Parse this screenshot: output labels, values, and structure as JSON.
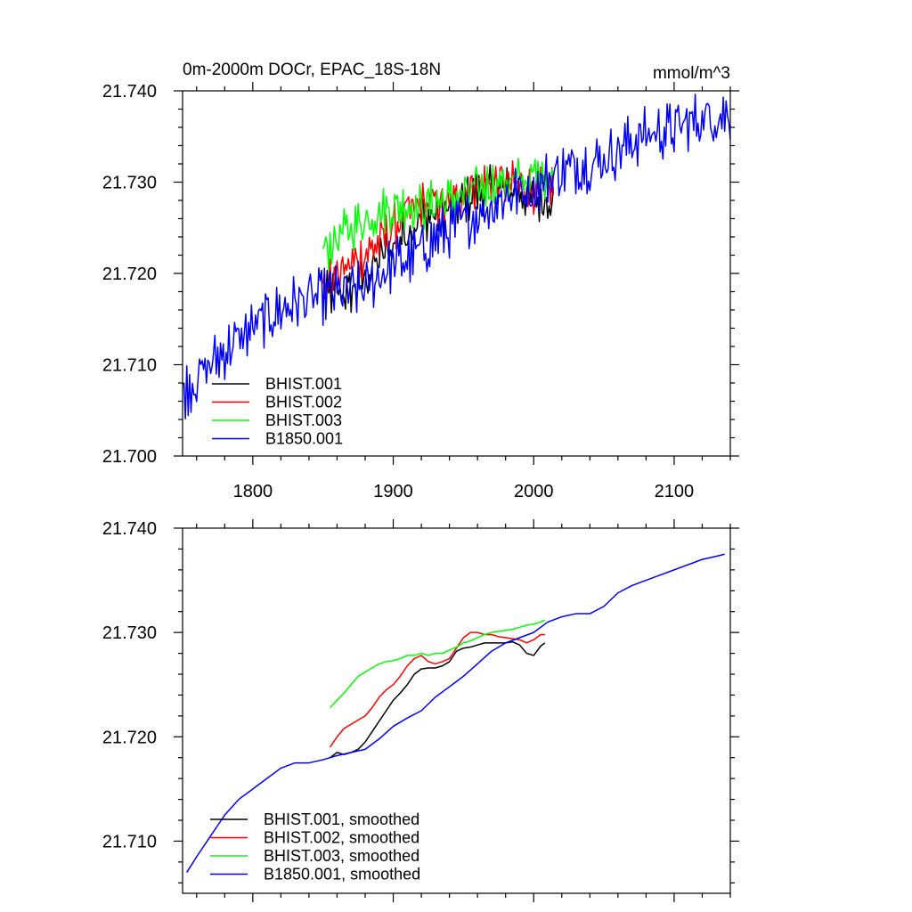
{
  "chart_data": [
    {
      "type": "line",
      "title": "0m-2000m DOCr, EPAC_18S-18N",
      "units": "mmol/m^3",
      "xlim": [
        1750,
        2140
      ],
      "ylim": [
        21.7,
        21.74
      ],
      "xticks": [
        1800,
        1900,
        2000,
        2100
      ],
      "xtick_labels": [
        "1800",
        "1900",
        "2000",
        "2100"
      ],
      "yticks": [
        21.7,
        21.71,
        21.72,
        21.73,
        21.74
      ],
      "ytick_labels": [
        "21.700",
        "21.710",
        "21.720",
        "21.730",
        "21.740"
      ],
      "grid": false,
      "legend_position": "bottom-left",
      "series": [
        {
          "name": "BHIST.001",
          "color": "#000000",
          "noise": 0.0022,
          "x": [
            1850,
            1860,
            1870,
            1880,
            1890,
            1900,
            1910,
            1920,
            1930,
            1940,
            1950,
            1960,
            1970,
            1980,
            1990,
            2000,
            2005,
            2014
          ],
          "y": [
            21.7175,
            21.7178,
            21.718,
            21.7195,
            21.7215,
            21.723,
            21.7248,
            21.726,
            21.7265,
            21.7268,
            21.7278,
            21.7288,
            21.7292,
            21.7292,
            21.729,
            21.728,
            21.7278,
            21.7288
          ]
        },
        {
          "name": "BHIST.002",
          "color": "#ff0000",
          "noise": 0.0022,
          "x": [
            1850,
            1860,
            1870,
            1880,
            1890,
            1900,
            1910,
            1920,
            1930,
            1940,
            1950,
            1960,
            1970,
            1980,
            1990,
            2000,
            2005,
            2014
          ],
          "y": [
            21.7185,
            21.7198,
            21.721,
            21.7222,
            21.7233,
            21.725,
            21.7265,
            21.7275,
            21.7278,
            21.727,
            21.729,
            21.7298,
            21.73,
            21.7298,
            21.7296,
            21.7292,
            21.729,
            21.7298
          ]
        },
        {
          "name": "BHIST.003",
          "color": "#00ff00",
          "noise": 0.0022,
          "x": [
            1850,
            1860,
            1870,
            1880,
            1890,
            1900,
            1910,
            1920,
            1930,
            1940,
            1950,
            1960,
            1970,
            1980,
            1990,
            2000,
            2005,
            2014
          ],
          "y": [
            21.7225,
            21.7238,
            21.725,
            21.726,
            21.7268,
            21.7272,
            21.7275,
            21.7272,
            21.7278,
            21.728,
            21.7285,
            21.7292,
            21.7298,
            21.73,
            21.7302,
            21.7305,
            21.7308,
            21.731
          ]
        },
        {
          "name": "B1850.001",
          "color": "#0000ff",
          "noise": 0.0026,
          "x": [
            1750,
            1760,
            1770,
            1780,
            1790,
            1800,
            1810,
            1820,
            1830,
            1840,
            1850,
            1860,
            1870,
            1880,
            1890,
            1900,
            1910,
            1920,
            1930,
            1940,
            1950,
            1960,
            1970,
            1980,
            1990,
            2000,
            2010,
            2020,
            2030,
            2040,
            2050,
            2060,
            2070,
            2080,
            2090,
            2100,
            2110,
            2120,
            2130,
            2140
          ],
          "y": [
            21.707,
            21.7085,
            21.71,
            21.7115,
            21.7128,
            21.714,
            21.7152,
            21.716,
            21.7168,
            21.7172,
            21.7175,
            21.7178,
            21.718,
            21.7183,
            21.7198,
            21.721,
            21.7215,
            21.7225,
            21.7238,
            21.7248,
            21.7255,
            21.7265,
            21.7275,
            21.7285,
            21.729,
            21.7292,
            21.7305,
            21.7312,
            21.7318,
            21.732,
            21.7325,
            21.7335,
            21.7345,
            21.7352,
            21.7355,
            21.7358,
            21.7365,
            21.737,
            21.7372,
            21.7375
          ]
        }
      ]
    },
    {
      "type": "line",
      "xlim": [
        1750,
        2140
      ],
      "ylim": [
        21.705,
        21.74
      ],
      "xticks": [
        1800,
        1900,
        2000,
        2100
      ],
      "yticks": [
        21.71,
        21.72,
        21.73,
        21.74
      ],
      "ytick_labels": [
        "21.710",
        "21.720",
        "21.730",
        "21.740"
      ],
      "grid": false,
      "legend_position": "bottom-left",
      "series": [
        {
          "name": "BHIST.001, smoothed",
          "color": "#000000",
          "x": [
            1855,
            1860,
            1865,
            1870,
            1875,
            1880,
            1885,
            1890,
            1895,
            1900,
            1905,
            1910,
            1915,
            1920,
            1925,
            1930,
            1935,
            1940,
            1945,
            1950,
            1955,
            1960,
            1965,
            1970,
            1975,
            1980,
            1985,
            1990,
            1995,
            2000,
            2005,
            2008
          ],
          "y": [
            21.718,
            21.7185,
            21.7183,
            21.7185,
            21.7188,
            21.7195,
            21.7205,
            21.7215,
            21.7225,
            21.7235,
            21.7242,
            21.725,
            21.726,
            21.7265,
            21.7266,
            21.7266,
            21.7268,
            21.7272,
            21.7282,
            21.7285,
            21.7286,
            21.7288,
            21.729,
            21.729,
            21.729,
            21.729,
            21.7291,
            21.7288,
            21.728,
            21.7278,
            21.7287,
            21.729
          ]
        },
        {
          "name": "BHIST.002, smoothed",
          "color": "#ff0000",
          "x": [
            1855,
            1860,
            1865,
            1870,
            1875,
            1880,
            1885,
            1890,
            1895,
            1900,
            1905,
            1910,
            1915,
            1920,
            1925,
            1930,
            1935,
            1940,
            1945,
            1950,
            1955,
            1960,
            1965,
            1970,
            1975,
            1980,
            1985,
            1990,
            1995,
            2000,
            2005,
            2008
          ],
          "y": [
            21.719,
            21.72,
            21.7208,
            21.7212,
            21.7216,
            21.722,
            21.7228,
            21.7238,
            21.7245,
            21.725,
            21.7258,
            21.7268,
            21.7275,
            21.7278,
            21.7272,
            21.727,
            21.7272,
            21.7275,
            21.7285,
            21.7295,
            21.73,
            21.73,
            21.7298,
            21.7298,
            21.7296,
            21.7295,
            21.7294,
            21.7293,
            21.729,
            21.7293,
            21.7298,
            21.7298
          ]
        },
        {
          "name": "BHIST.003, smoothed",
          "color": "#00ff00",
          "x": [
            1855,
            1860,
            1865,
            1870,
            1875,
            1880,
            1885,
            1890,
            1895,
            1900,
            1905,
            1910,
            1915,
            1920,
            1925,
            1930,
            1935,
            1940,
            1945,
            1950,
            1955,
            1960,
            1965,
            1970,
            1975,
            1980,
            1985,
            1990,
            1995,
            2000,
            2005,
            2008
          ],
          "y": [
            21.7228,
            21.7235,
            21.7242,
            21.725,
            21.7258,
            21.7262,
            21.7266,
            21.727,
            21.7272,
            21.7273,
            21.7275,
            21.7278,
            21.7278,
            21.728,
            21.7278,
            21.728,
            21.728,
            21.7283,
            21.7286,
            21.729,
            21.7292,
            21.7295,
            21.7298,
            21.73,
            21.7301,
            21.7302,
            21.7303,
            21.7305,
            21.7307,
            21.7308,
            21.731,
            21.7312
          ]
        },
        {
          "name": "B1850.001, smoothed",
          "color": "#0000ff",
          "x": [
            1753,
            1760,
            1770,
            1780,
            1790,
            1800,
            1810,
            1820,
            1830,
            1840,
            1850,
            1860,
            1870,
            1880,
            1890,
            1900,
            1910,
            1920,
            1930,
            1940,
            1950,
            1960,
            1970,
            1980,
            1990,
            2000,
            2010,
            2020,
            2030,
            2040,
            2050,
            2060,
            2070,
            2080,
            2090,
            2100,
            2110,
            2120,
            2130,
            2136
          ],
          "y": [
            21.707,
            21.7085,
            21.7105,
            21.7125,
            21.714,
            21.715,
            21.716,
            21.717,
            21.7175,
            21.7175,
            21.7178,
            21.7182,
            21.7185,
            21.7188,
            21.7198,
            21.721,
            21.7218,
            21.7225,
            21.7238,
            21.7248,
            21.7258,
            21.727,
            21.7282,
            21.729,
            21.7295,
            21.73,
            21.731,
            21.7315,
            21.7318,
            21.7318,
            21.7325,
            21.7338,
            21.7345,
            21.735,
            21.7355,
            21.736,
            21.7365,
            21.737,
            21.7373,
            21.7375
          ]
        }
      ]
    }
  ]
}
